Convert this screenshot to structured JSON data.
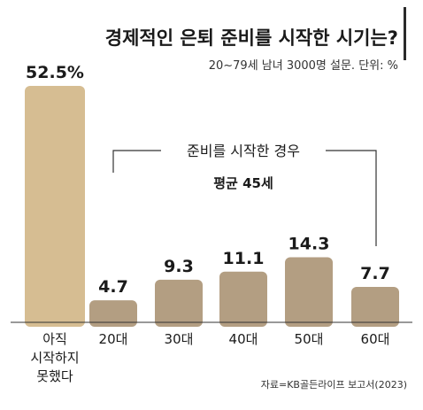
{
  "chart_data": {
    "type": "bar",
    "title": "경제적인 은퇴 준비를 시작한 시기는?",
    "subtitle": "20~79세 남녀 3000명 설문. 단위: %",
    "categories": [
      "아직\n시작하지\n못했다",
      "20대",
      "30대",
      "40대",
      "50대",
      "60대"
    ],
    "values": [
      52.5,
      4.7,
      9.3,
      11.1,
      14.3,
      7.7
    ],
    "value_labels": [
      "52.5%",
      "4.7",
      "9.3",
      "11.1",
      "14.3",
      "7.7"
    ],
    "bracket_label": "준비를 시작한 경우",
    "bracket_sublabel": "평균 45세",
    "source": "자료=KB골든라이프 보고서(2023)",
    "ylim": [
      0,
      52.5
    ],
    "colors": {
      "highlight_bar": "#d6bd92",
      "bar": "#b39e82",
      "title_bar": "#2a2a2a",
      "axis": "#333333"
    }
  }
}
